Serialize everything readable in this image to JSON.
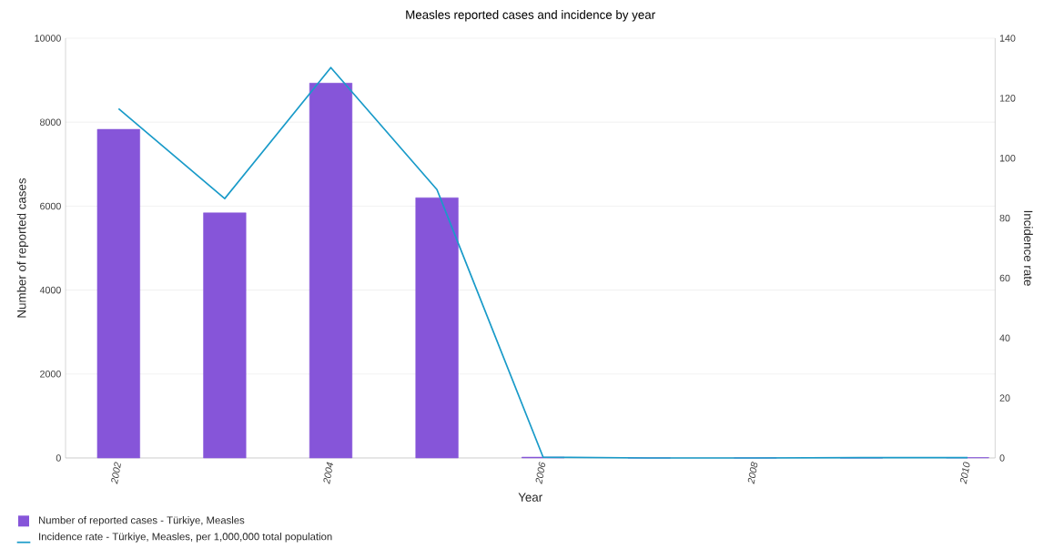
{
  "chart_data": {
    "type": "bar",
    "title": "Measles reported cases and incidence by year",
    "xlabel": "Year",
    "ylabel": "Number of reported cases",
    "y2label": "Incidence rate",
    "categories": [
      "2002",
      null,
      "2004",
      null,
      "2006",
      null,
      "2008",
      null,
      "2010"
    ],
    "series": [
      {
        "name": "Number of reported cases - Türkiye, Measles",
        "color": "#8655d9",
        "values": [
          7830,
          5840,
          8930,
          6200,
          20,
          0,
          0,
          0,
          10
        ]
      },
      {
        "name": "Incidence rate - Türkiye, Measles, per 1,000,000 total population",
        "type": "line",
        "axis": "y2",
        "color": "#1a9bc9",
        "values": [
          116.5,
          86.5,
          130.2,
          89.5,
          0.3,
          0,
          0,
          0.1,
          0.1
        ]
      }
    ],
    "ylim": [
      0,
      10000
    ],
    "yticks": [
      0,
      2000,
      4000,
      6000,
      8000,
      10000
    ],
    "y2lim": [
      0,
      140
    ],
    "y2ticks": [
      0,
      20,
      40,
      60,
      80,
      100,
      120,
      140
    ],
    "grid": "y",
    "legend": "bottom left"
  }
}
